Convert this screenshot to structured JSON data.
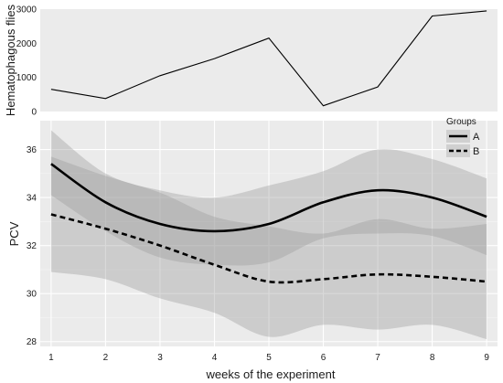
{
  "chart_data": [
    {
      "type": "line",
      "ylabel": "Hematophagous flies",
      "xlim": [
        0.8,
        9.2
      ],
      "ylim": [
        0,
        3000
      ],
      "yticks": [
        0,
        1000,
        2000,
        3000
      ],
      "grid": false,
      "panel_color": "#ebebeb",
      "series": [
        {
          "x": [
            1,
            2,
            3,
            4,
            5,
            6,
            7,
            8,
            9
          ],
          "values": [
            650,
            380,
            1050,
            1550,
            2150,
            170,
            720,
            2800,
            2950
          ],
          "color": "#000000"
        }
      ]
    },
    {
      "type": "line",
      "xlabel": "weeks of the experiment",
      "ylabel": "PCV",
      "xlim": [
        0.8,
        9.2
      ],
      "ylim": [
        27.8,
        37.2
      ],
      "xticks": [
        1,
        2,
        3,
        4,
        5,
        6,
        7,
        8,
        9
      ],
      "yticks": [
        28,
        30,
        32,
        34,
        36
      ],
      "grid": true,
      "panel_color": "#ebebeb",
      "legend": {
        "title": "Groups",
        "position": "top-right"
      },
      "series": [
        {
          "name": "A",
          "line": "solid",
          "color": "#000000",
          "x": [
            1,
            2,
            3,
            4,
            5,
            6,
            7,
            8,
            9
          ],
          "values": [
            35.4,
            33.8,
            32.9,
            32.6,
            32.9,
            33.8,
            34.3,
            34.0,
            33.2
          ],
          "lower": [
            34.1,
            32.6,
            31.5,
            31.2,
            31.3,
            32.3,
            32.5,
            32.4,
            31.6
          ],
          "upper": [
            36.8,
            35.0,
            34.3,
            34.0,
            34.5,
            35.1,
            36.0,
            35.6,
            34.8
          ]
        },
        {
          "name": "B",
          "line": "dashed",
          "color": "#000000",
          "x": [
            1,
            2,
            3,
            4,
            5,
            6,
            7,
            8,
            9
          ],
          "values": [
            33.3,
            32.7,
            32.0,
            31.2,
            30.5,
            30.6,
            30.8,
            30.7,
            30.5
          ],
          "lower": [
            30.9,
            30.6,
            29.8,
            29.2,
            28.2,
            28.7,
            28.5,
            28.7,
            28.1
          ],
          "upper": [
            35.7,
            34.9,
            34.2,
            33.2,
            32.8,
            32.5,
            33.1,
            32.7,
            32.9
          ]
        }
      ]
    }
  ]
}
